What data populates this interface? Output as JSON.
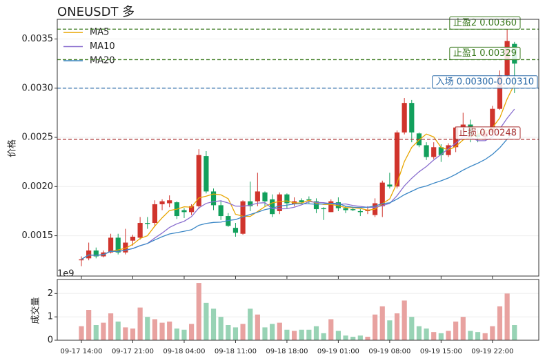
{
  "chart_data": [
    {
      "type": "candlestick",
      "title": "ONEUSDT 多",
      "y_label": "价格",
      "up_color": "#d0342c",
      "down_color": "#12a05c",
      "grid": true,
      "legend": "upper left",
      "ylim": [
        0.00109,
        0.0037
      ],
      "yticks": [
        0.0015,
        {
          "value": 0.002,
          "label": "0.0020"
        },
        0.0025,
        {
          "value": 0.003,
          "label": "0.0030"
        },
        0.0035
      ],
      "open": [
        0.00125,
        0.00127,
        0.00135,
        0.00129,
        0.00133,
        0.00148,
        0.00133,
        0.00145,
        0.00148,
        0.00163,
        0.00163,
        0.00182,
        0.00183,
        0.00184,
        0.00176,
        0.00174,
        0.0018,
        0.00231,
        0.00195,
        0.00181,
        0.0017,
        0.00158,
        0.00152,
        0.00185,
        0.00185,
        0.00194,
        0.00187,
        0.00175,
        0.00192,
        0.00182,
        0.00186,
        0.00187,
        0.00185,
        0.00178,
        0.00174,
        0.00184,
        0.00178,
        0.00177,
        0.00175,
        0.00175,
        0.00171,
        0.0018,
        0.00202,
        0.002,
        0.00255,
        0.00285,
        0.00254,
        0.00242,
        0.0023,
        0.0024,
        0.00232,
        0.0024,
        0.0026,
        0.00263,
        0.00253,
        0.0025,
        0.00255,
        0.00279,
        0.00313,
        0.00345
      ],
      "high": [
        0.00129,
        0.00143,
        0.00138,
        0.00135,
        0.00152,
        0.00152,
        0.00157,
        0.00151,
        0.00169,
        0.00169,
        0.00186,
        0.00187,
        0.00191,
        0.00185,
        0.00178,
        0.00182,
        0.00238,
        0.00236,
        0.00198,
        0.00185,
        0.00173,
        0.00163,
        0.00186,
        0.00205,
        0.00214,
        0.00195,
        0.00192,
        0.00194,
        0.00193,
        0.00189,
        0.00188,
        0.0019,
        0.00188,
        0.00179,
        0.00187,
        0.00189,
        0.0018,
        0.00179,
        0.00177,
        0.0018,
        0.00188,
        0.00206,
        0.00214,
        0.00257,
        0.0029,
        0.00288,
        0.00255,
        0.00245,
        0.00245,
        0.00243,
        0.00244,
        0.00261,
        0.00275,
        0.00268,
        0.00258,
        0.00258,
        0.00282,
        0.00318,
        0.0036,
        0.00347
      ],
      "low": [
        0.00119,
        0.00125,
        0.00127,
        0.00128,
        0.00132,
        0.00131,
        0.00131,
        0.0014,
        0.00146,
        0.00157,
        0.00159,
        0.00176,
        0.00179,
        0.00167,
        0.00168,
        0.00171,
        0.00177,
        0.00193,
        0.00176,
        0.00166,
        0.00159,
        0.00149,
        0.00151,
        0.00175,
        0.0018,
        0.0018,
        0.00169,
        0.00172,
        0.00178,
        0.0018,
        0.00182,
        0.00183,
        0.00173,
        0.00166,
        0.00174,
        0.00175,
        0.00173,
        0.00175,
        0.0017,
        0.00172,
        0.00169,
        0.00169,
        0.00198,
        0.00198,
        0.00253,
        0.00245,
        0.0024,
        0.00227,
        0.00228,
        0.00225,
        0.0023,
        0.00235,
        0.00255,
        0.00245,
        0.00245,
        0.00248,
        0.00253,
        0.00278,
        0.0031,
        0.00295
      ],
      "close": [
        0.00126,
        0.00135,
        0.00129,
        0.00133,
        0.00148,
        0.00133,
        0.00143,
        0.00149,
        0.00163,
        0.00162,
        0.00182,
        0.00185,
        0.00186,
        0.0017,
        0.00174,
        0.0018,
        0.00232,
        0.00195,
        0.00181,
        0.0017,
        0.0016,
        0.00153,
        0.00185,
        0.0018,
        0.00195,
        0.00185,
        0.00172,
        0.00192,
        0.00183,
        0.00185,
        0.00184,
        0.00186,
        0.00177,
        0.00177,
        0.00185,
        0.00178,
        0.00176,
        0.00176,
        0.00174,
        0.00176,
        0.00183,
        0.00204,
        0.002,
        0.00255,
        0.00285,
        0.00255,
        0.00242,
        0.0023,
        0.0024,
        0.00232,
        0.00242,
        0.0026,
        0.00263,
        0.00252,
        0.0025,
        0.00255,
        0.00279,
        0.00313,
        0.00348,
        0.00325
      ],
      "series": [
        {
          "name": "MA5",
          "color": "#e8a600",
          "values": [
            0.00126,
            0.001305,
            0.0013,
            0.001308,
            0.001342,
            0.001356,
            0.001372,
            0.001412,
            0.001472,
            0.0015,
            0.001598,
            0.001682,
            0.001756,
            0.00177,
            0.001794,
            0.00179,
            0.001884,
            0.001902,
            0.001924,
            0.001916,
            0.001876,
            0.001718,
            0.001698,
            0.001696,
            0.001746,
            0.001796,
            0.001834,
            0.001848,
            0.001854,
            0.001834,
            0.001832,
            0.00186,
            0.00183,
            0.001818,
            0.001818,
            0.001806,
            0.001786,
            0.001784,
            0.001778,
            0.00176,
            0.00177,
            0.001826,
            0.001874,
            0.002036,
            0.002254,
            0.002398,
            0.002474,
            0.002534,
            0.002504,
            0.002398,
            0.002372,
            0.002408,
            0.002474,
            0.002498,
            0.002534,
            0.00256,
            0.002598,
            0.002698,
            0.00289,
            0.00304
          ]
        },
        {
          "name": "MA10",
          "color": "#8a6fcf",
          "values": [
            0.00126,
            0.001305,
            0.0013,
            0.001308,
            0.001342,
            0.00134,
            0.001353,
            0.00137,
            0.001399,
            0.001421,
            0.001477,
            0.001527,
            0.001584,
            0.001621,
            0.001647,
            0.001694,
            0.001783,
            0.001829,
            0.001847,
            0.001855,
            0.001833,
            0.001801,
            0.0018,
            0.00181,
            0.001831,
            0.001836,
            0.001776,
            0.001773,
            0.001775,
            0.00179,
            0.001814,
            0.001847,
            0.001839,
            0.001836,
            0.001826,
            0.001819,
            0.001823,
            0.001807,
            0.001798,
            0.001789,
            0.001788,
            0.001806,
            0.001829,
            0.001907,
            0.002007,
            0.002084,
            0.00215,
            0.002204,
            0.00227,
            0.002326,
            0.002385,
            0.002441,
            0.002504,
            0.002501,
            0.002466,
            0.002466,
            0.002503,
            0.002586,
            0.002694,
            0.002787
          ]
        },
        {
          "name": "MA20",
          "color": "#3b87c6",
          "values": [
            0.00126,
            0.001305,
            0.0013,
            0.001308,
            0.001342,
            0.00134,
            0.001353,
            0.00137,
            0.001399,
            0.001421,
            0.001457,
            0.00149,
            0.001518,
            0.001531,
            0.001545,
            0.001561,
            0.001606,
            0.001625,
            0.001635,
            0.001638,
            0.001655,
            0.001664,
            0.001692,
            0.001716,
            0.001739,
            0.001765,
            0.00178,
            0.001801,
            0.001811,
            0.001823,
            0.001824,
            0.001824,
            0.00182,
            0.001823,
            0.001829,
            0.001828,
            0.0018,
            0.00179,
            0.001787,
            0.00179,
            0.001801,
            0.001827,
            0.001834,
            0.001872,
            0.001917,
            0.001952,
            0.001987,
            0.002006,
            0.002034,
            0.002058,
            0.002087,
            0.002124,
            0.002167,
            0.002204,
            0.002237,
            0.002275,
            0.002327,
            0.002395,
            0.002482,
            0.002557
          ]
        }
      ],
      "levels": [
        {
          "label": "止盈2 0.00360",
          "value": 0.0036,
          "color": "#3a7a1e"
        },
        {
          "label": "止盈1 0.00329",
          "value": 0.00329,
          "color": "#3a7a1e"
        },
        {
          "label": "入场 0.00300-0.00310",
          "value": 0.003,
          "color": "#2a6aa8"
        },
        {
          "label": "止损 0.00248",
          "value": 0.00248,
          "color": "#a83232"
        }
      ]
    },
    {
      "type": "bar",
      "y_label": "成交量",
      "offset_label": "1e9",
      "up_color": "#e8a2a0",
      "down_color": "#98d3b5",
      "grid": true,
      "ylim": [
        0,
        2.6
      ],
      "yticks": [
        0,
        1,
        2
      ],
      "categories": [
        "09-17 14:00",
        null,
        null,
        null,
        null,
        null,
        null,
        "09-17 21:00",
        null,
        null,
        null,
        null,
        null,
        null,
        "09-18 04:00",
        null,
        null,
        null,
        null,
        null,
        null,
        "09-18 11:00",
        null,
        null,
        null,
        null,
        null,
        null,
        "09-18 18:00",
        null,
        null,
        null,
        null,
        null,
        null,
        "09-19 01:00",
        null,
        null,
        null,
        null,
        null,
        null,
        "09-19 08:00",
        null,
        null,
        null,
        null,
        null,
        null,
        "09-19 15:00",
        null,
        null,
        null,
        null,
        null,
        null,
        "09-19 22:00",
        null,
        null,
        null
      ],
      "values": [
        0.6,
        1.3,
        0.65,
        0.75,
        1.15,
        0.8,
        0.55,
        0.5,
        1.4,
        1.0,
        0.9,
        0.75,
        0.8,
        0.5,
        0.45,
        0.7,
        2.45,
        1.6,
        1.35,
        1.0,
        0.65,
        0.55,
        0.7,
        1.35,
        1.1,
        0.55,
        0.7,
        0.75,
        0.45,
        0.4,
        0.45,
        0.45,
        0.6,
        0.3,
        0.9,
        0.4,
        0.2,
        0.15,
        0.2,
        0.15,
        1.1,
        1.45,
        0.85,
        1.15,
        1.7,
        1.0,
        0.6,
        0.5,
        0.35,
        0.3,
        0.4,
        0.8,
        1.0,
        0.4,
        0.35,
        0.3,
        0.6,
        1.45,
        2.0,
        0.65
      ]
    }
  ]
}
